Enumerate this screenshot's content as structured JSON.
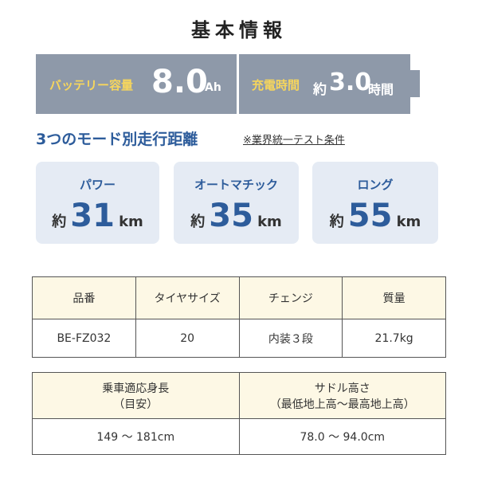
{
  "header": {
    "title": "基本情報"
  },
  "battery": {
    "capacity_label": "バッテリー容量",
    "capacity_value": "8.0",
    "capacity_unit": "Ah",
    "charge_label": "充電時間",
    "charge_prefix": "約",
    "charge_value": "3.0",
    "charge_unit": "時間"
  },
  "modes": {
    "title": "3つのモード別走行距離",
    "note": "※業界統一テスト条件",
    "items": [
      {
        "label": "パワー",
        "prefix": "約",
        "value": "31",
        "unit": "km"
      },
      {
        "label": "オートマチック",
        "prefix": "約",
        "value": "35",
        "unit": "km"
      },
      {
        "label": "ロング",
        "prefix": "約",
        "value": "55",
        "unit": "km"
      }
    ]
  },
  "spec_table": {
    "headers": [
      "品番",
      "タイヤサイズ",
      "チェンジ",
      "質量"
    ],
    "rows": [
      [
        "BE-FZ032",
        "20",
        "内装３段",
        "21.7kg"
      ]
    ]
  },
  "size_table": {
    "headers": [
      [
        "乗車適応身長",
        "（目安）"
      ],
      [
        "サドル高さ",
        "（最低地上高～最高地上高）"
      ]
    ],
    "rows": [
      [
        "149 ～ 181cm",
        "78.0 ～ 94.0cm"
      ]
    ]
  }
}
